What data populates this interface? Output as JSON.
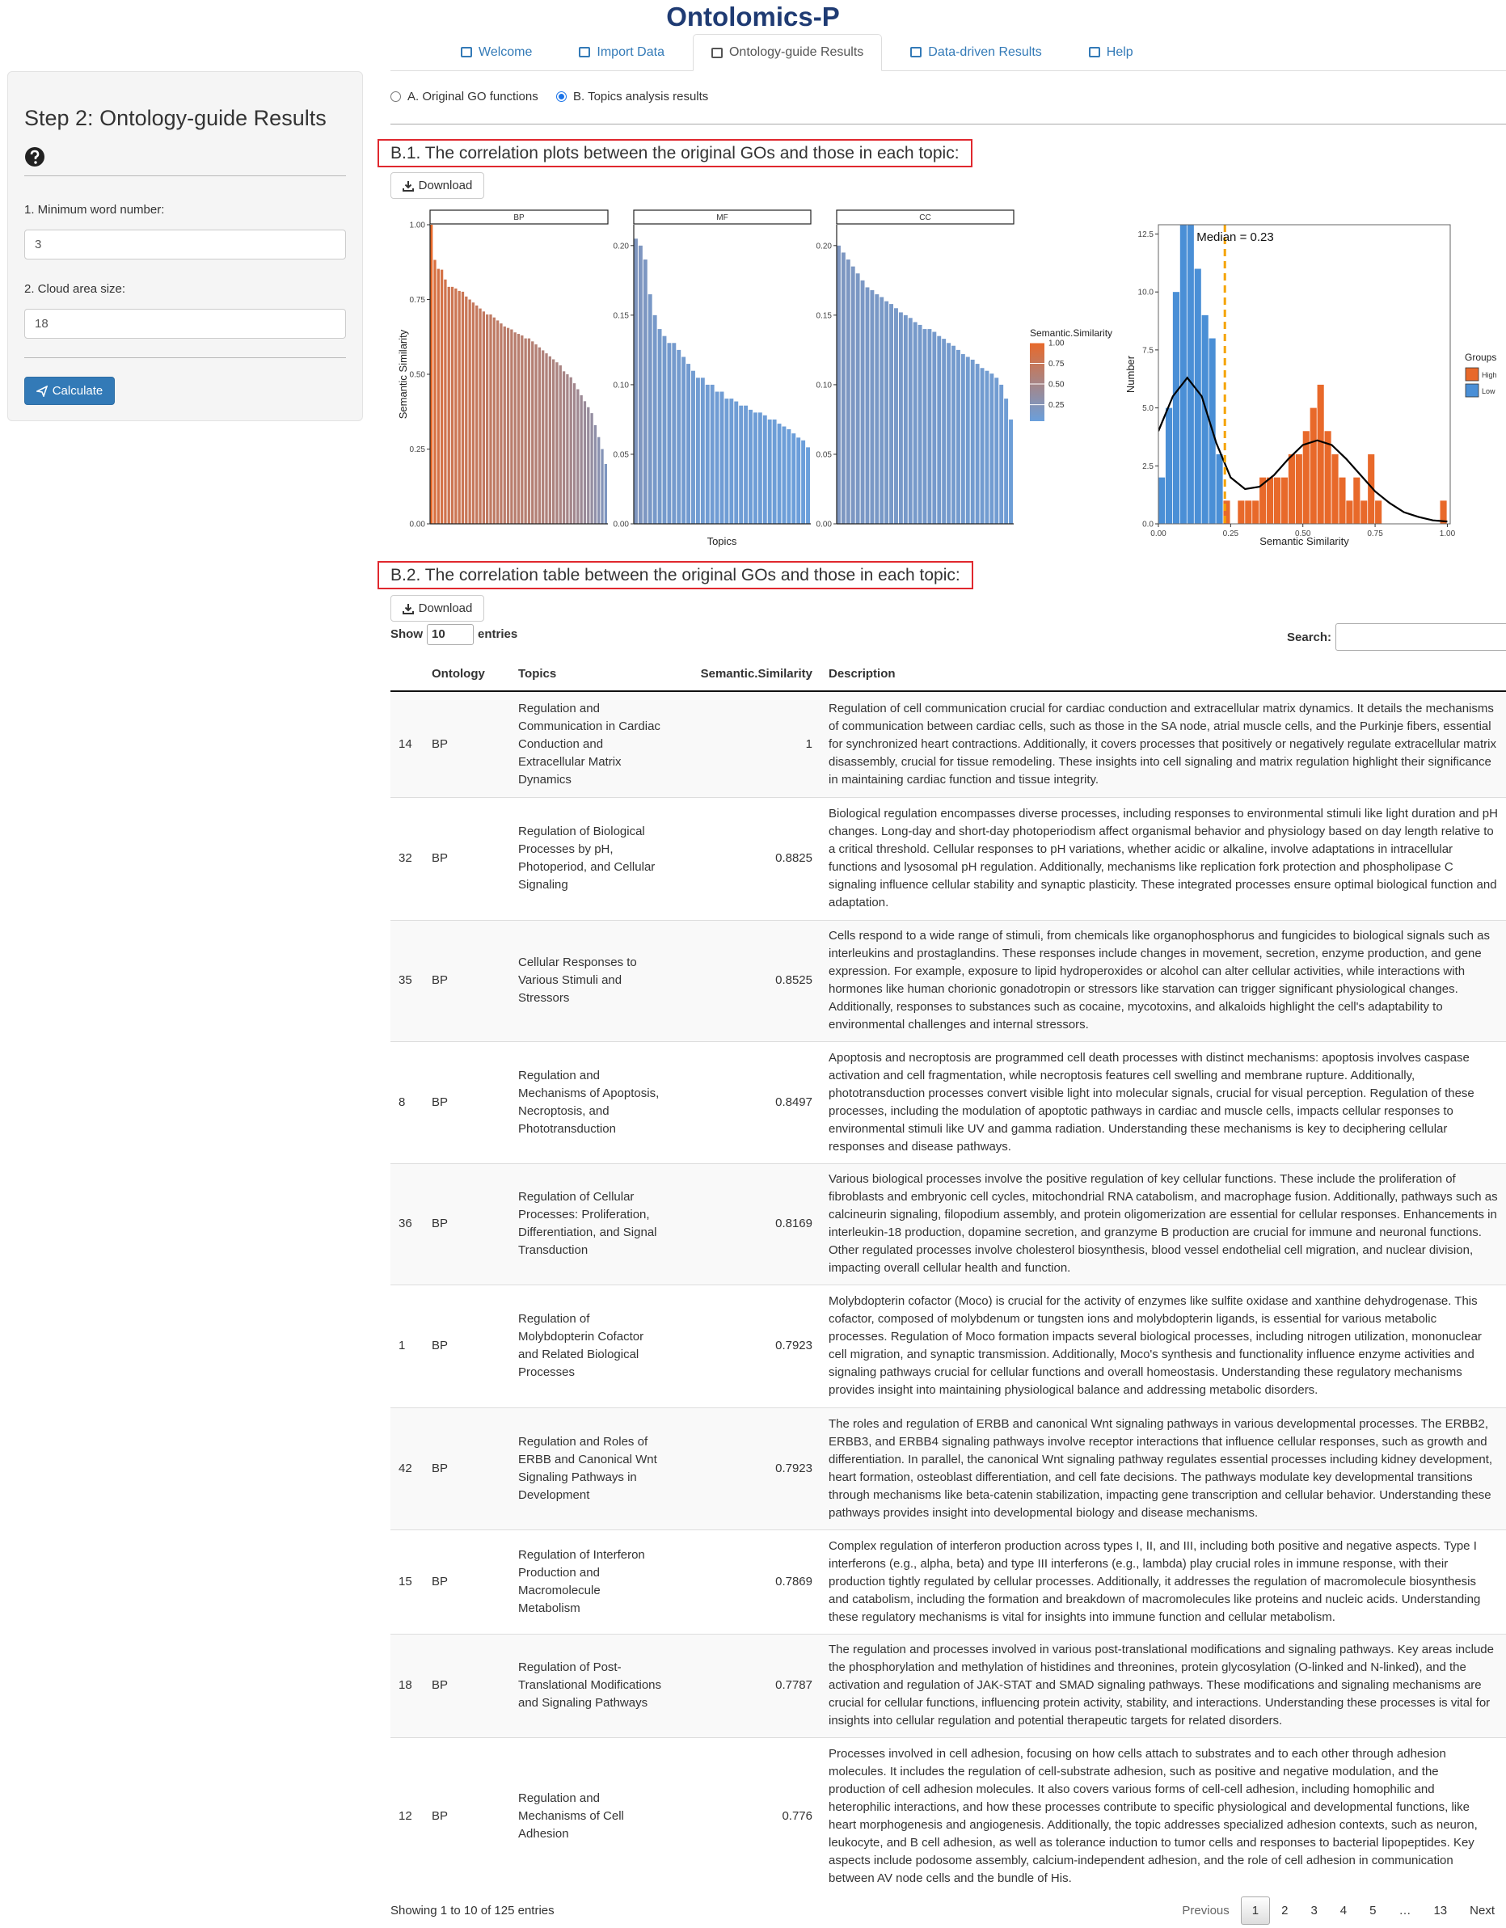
{
  "app": {
    "brand": "Ontolomics-P",
    "tabs": [
      "Welcome",
      "Import Data",
      "Ontology-guide Results",
      "Data-driven Results",
      "Help"
    ],
    "sidebar": {
      "title": "Step 2: Ontology-guide Results",
      "fields": [
        {
          "label": "1. Minimum word number:",
          "value": "3"
        },
        {
          "label": "2. Cloud area size:",
          "value": "18"
        }
      ],
      "button": "Calculate"
    },
    "radios": [
      "A. Original GO functions",
      "B. Topics analysis results"
    ],
    "sections": [
      {
        "title": "B.1. The correlation plots between the original GOs and those in each topic:",
        "button": "Download"
      },
      {
        "title": "B.2. The correlation table between the original GOs and those in each topic:",
        "button": "Download"
      }
    ],
    "table": {
      "show": "Show",
      "length": "10",
      "entries": "entries",
      "search": "Search:",
      "columns": [
        "Ontology",
        "Topics",
        "Semantic.Similarity",
        "Description"
      ],
      "rows": [
        [
          14,
          "BP",
          "Regulation and Communication in Cardiac Conduction and Extracellular Matrix Dynamics",
          1,
          "Regulation of cell communication crucial for cardiac conduction and extracellular matrix dynamics. It details the mechanisms of communication between cardiac cells, such as those in the SA node, atrial muscle cells, and the Purkinje fibers, essential for synchronized heart contractions. Additionally, it covers processes that positively or negatively regulate extracellular matrix disassembly, crucial for tissue remodeling. These insights into cell signaling and matrix regulation highlight their significance in maintaining cardiac function and tissue integrity."
        ],
        [
          32,
          "BP",
          "Regulation of Biological Processes by pH, Photoperiod, and Cellular Signaling",
          0.8825,
          "Biological regulation encompasses diverse processes, including responses to environmental stimuli like light duration and pH changes. Long-day and short-day photoperiodism affect organismal behavior and physiology based on day length relative to a critical threshold. Cellular responses to pH variations, whether acidic or alkaline, involve adaptations in intracellular functions and lysosomal pH regulation. Additionally, mechanisms like replication fork protection and phospholipase C signaling influence cellular stability and synaptic plasticity. These integrated processes ensure optimal biological function and adaptation."
        ],
        [
          35,
          "BP",
          "Cellular Responses to Various Stimuli and Stressors",
          0.8525,
          "Cells respond to a wide range of stimuli, from chemicals like organophosphorus and fungicides to biological signals such as interleukins and prostaglandins. These responses include changes in movement, secretion, enzyme production, and gene expression. For example, exposure to lipid hydroperoxides or alcohol can alter cellular activities, while interactions with hormones like human chorionic gonadotropin or stressors like starvation can trigger significant physiological changes. Additionally, responses to substances such as cocaine, mycotoxins, and alkaloids highlight the cell's adaptability to environmental challenges and internal stressors."
        ],
        [
          8,
          "BP",
          "Regulation and Mechanisms of Apoptosis, Necroptosis, and Phototransduction",
          0.8497,
          "Apoptosis and necroptosis are programmed cell death processes with distinct mechanisms: apoptosis involves caspase activation and cell fragmentation, while necroptosis features cell swelling and membrane rupture. Additionally, phototransduction processes convert visible light into molecular signals, crucial for visual perception. Regulation of these processes, including the modulation of apoptotic pathways in cardiac and muscle cells, impacts cellular responses to environmental stimuli like UV and gamma radiation. Understanding these mechanisms is key to deciphering cellular responses and disease pathways."
        ],
        [
          36,
          "BP",
          "Regulation of Cellular Processes: Proliferation, Differentiation, and Signal Transduction",
          0.8169,
          "Various biological processes involve the positive regulation of key cellular functions. These include the proliferation of fibroblasts and embryonic cell cycles, mitochondrial RNA catabolism, and macrophage fusion. Additionally, pathways such as calcineurin signaling, filopodium assembly, and protein oligomerization are essential for cellular responses. Enhancements in interleukin-18 production, dopamine secretion, and granzyme B production are crucial for immune and neuronal functions. Other regulated processes involve cholesterol biosynthesis, blood vessel endothelial cell migration, and nuclear division, impacting overall cellular health and function."
        ],
        [
          1,
          "BP",
          "Regulation of Molybdopterin Cofactor and Related Biological Processes",
          0.7923,
          "Molybdopterin cofactor (Moco) is crucial for the activity of enzymes like sulfite oxidase and xanthine dehydrogenase. This cofactor, composed of molybdenum or tungsten ions and molybdopterin ligands, is essential for various metabolic processes. Regulation of Moco formation impacts several biological processes, including nitrogen utilization, mononuclear cell migration, and synaptic transmission. Additionally, Moco's synthesis and functionality influence enzyme activities and signaling pathways crucial for cellular functions and overall homeostasis. Understanding these regulatory mechanisms provides insight into maintaining physiological balance and addressing metabolic disorders."
        ],
        [
          42,
          "BP",
          "Regulation and Roles of ERBB and Canonical Wnt Signaling Pathways in Development",
          0.7923,
          "The roles and regulation of ERBB and canonical Wnt signaling pathways in various developmental processes. The ERBB2, ERBB3, and ERBB4 signaling pathways involve receptor interactions that influence cellular responses, such as growth and differentiation. In parallel, the canonical Wnt signaling pathway regulates essential processes including kidney development, heart formation, osteoblast differentiation, and cell fate decisions. The pathways modulate key developmental transitions through mechanisms like beta-catenin stabilization, impacting gene transcription and cellular behavior. Understanding these pathways provides insight into developmental biology and disease mechanisms."
        ],
        [
          15,
          "BP",
          "Regulation of Interferon Production and Macromolecule Metabolism",
          0.7869,
          "Complex regulation of interferon production across types I, II, and III, including both positive and negative aspects. Type I interferons (e.g., alpha, beta) and type III interferons (e.g., lambda) play crucial roles in immune response, with their production tightly regulated by cellular processes. Additionally, it addresses the regulation of macromolecule biosynthesis and catabolism, including the formation and breakdown of macromolecules like proteins and nucleic acids. Understanding these regulatory mechanisms is vital for insights into immune function and cellular metabolism."
        ],
        [
          18,
          "BP",
          "Regulation of Post-Translational Modifications and Signaling Pathways",
          0.7787,
          "The regulation and processes involved in various post-translational modifications and signaling pathways. Key areas include the phosphorylation and methylation of histidines and threonines, protein glycosylation (O-linked and N-linked), and the activation and regulation of JAK-STAT and SMAD signaling pathways. These modifications and signaling mechanisms are crucial for cellular functions, influencing protein activity, stability, and interactions. Understanding these processes is vital for insights into cellular regulation and potential therapeutic targets for related disorders."
        ],
        [
          12,
          "BP",
          "Regulation and Mechanisms of Cell Adhesion",
          0.776,
          "Processes involved in cell adhesion, focusing on how cells attach to substrates and to each other through adhesion molecules. It includes the regulation of cell-substrate adhesion, such as positive and negative modulation, and the production of cell adhesion molecules. It also covers various forms of cell-cell adhesion, including homophilic and heterophilic interactions, and how these processes contribute to specific physiological and developmental functions, like heart morphogenesis and angiogenesis. Additionally, the topic addresses specialized adhesion contexts, such as neuron, leukocyte, and B cell adhesion, as well as tolerance induction to tumor cells and responses to bacterial lipopeptides. Key aspects include podosome assembly, calcium-independent adhesion, and the role of cell adhesion in communication between AV node cells and the bundle of His."
        ]
      ],
      "info": "Showing 1 to 10 of 125 entries",
      "pages": [
        "Previous",
        "1",
        "2",
        "3",
        "4",
        "5",
        "…",
        "13",
        "Next"
      ]
    }
  },
  "chart_data": [
    {
      "type": "bar",
      "title": "BP",
      "ylabel": "Semantic Similarity",
      "ylim": [
        0,
        1
      ],
      "yticks": [
        {
          "value": 0,
          "label": "0.00"
        },
        {
          "value": 0.25,
          "label": "0.25"
        },
        {
          "value": 0.5,
          "label": "0.50"
        },
        {
          "value": 0.75,
          "label": "0.75"
        },
        {
          "value": 1,
          "label": "1.00"
        }
      ],
      "values": [
        1,
        0.8825,
        0.8525,
        0.8497,
        0.8169,
        0.7923,
        0.7923,
        0.7869,
        0.7787,
        0.776,
        0.76,
        0.75,
        0.74,
        0.73,
        0.72,
        0.71,
        0.7,
        0.7,
        0.69,
        0.68,
        0.67,
        0.66,
        0.655,
        0.65,
        0.64,
        0.635,
        0.63,
        0.62,
        0.62,
        0.61,
        0.6,
        0.59,
        0.58,
        0.57,
        0.56,
        0.55,
        0.54,
        0.53,
        0.51,
        0.5,
        0.49,
        0.47,
        0.45,
        0.43,
        0.41,
        0.39,
        0.37,
        0.33,
        0.29,
        0.25,
        0.2
      ]
    },
    {
      "type": "bar",
      "title": "MF",
      "xlabel": "Topics",
      "ylim": [
        0,
        0.215
      ],
      "yticks": [
        {
          "value": 0,
          "label": "0.00"
        },
        {
          "value": 0.05,
          "label": "0.05"
        },
        {
          "value": 0.1,
          "label": "0.10"
        },
        {
          "value": 0.15,
          "label": "0.15"
        },
        {
          "value": 0.2,
          "label": "0.20"
        }
      ],
      "values": [
        0.205,
        0.2,
        0.19,
        0.165,
        0.15,
        0.14,
        0.135,
        0.13,
        0.13,
        0.125,
        0.12,
        0.115,
        0.11,
        0.105,
        0.105,
        0.1,
        0.1,
        0.095,
        0.095,
        0.09,
        0.09,
        0.088,
        0.085,
        0.085,
        0.082,
        0.08,
        0.08,
        0.078,
        0.075,
        0.075,
        0.072,
        0.07,
        0.068,
        0.065,
        0.062,
        0.06,
        0.055
      ]
    },
    {
      "type": "bar",
      "title": "CC",
      "ylim": [
        0,
        0.215
      ],
      "yticks": [
        {
          "value": 0,
          "label": "0.00"
        },
        {
          "value": 0.05,
          "label": "0.05"
        },
        {
          "value": 0.1,
          "label": "0.10"
        },
        {
          "value": 0.15,
          "label": "0.15"
        },
        {
          "value": 0.2,
          "label": "0.20"
        }
      ],
      "values": [
        0.2,
        0.195,
        0.19,
        0.185,
        0.18,
        0.175,
        0.17,
        0.168,
        0.165,
        0.163,
        0.16,
        0.158,
        0.155,
        0.152,
        0.15,
        0.148,
        0.145,
        0.143,
        0.14,
        0.14,
        0.138,
        0.135,
        0.133,
        0.13,
        0.128,
        0.125,
        0.122,
        0.12,
        0.118,
        0.115,
        0.112,
        0.11,
        0.108,
        0.105,
        0.1,
        0.09,
        0.075
      ],
      "colorbar": {
        "title": "Semantic.Similarity",
        "limits": [
          0.05,
          1
        ],
        "low_color": "#6a9fdc",
        "high_color": "#e8692a",
        "ticks": [
          {
            "value": 0.25,
            "label": "0.25"
          },
          {
            "value": 0.5,
            "label": "0.50"
          },
          {
            "value": 0.75,
            "label": "0.75"
          },
          {
            "value": 1,
            "label": "1.00"
          }
        ]
      }
    },
    {
      "type": "histogram",
      "xlabel": "Semantic Similarity",
      "ylabel": "Number",
      "xlim": [
        0,
        1.01
      ],
      "ylim": [
        0,
        12.9
      ],
      "xticks": [
        {
          "value": 0,
          "label": "0.00"
        },
        {
          "value": 0.25,
          "label": "0.25"
        },
        {
          "value": 0.5,
          "label": "0.50"
        },
        {
          "value": 0.75,
          "label": "0.75"
        },
        {
          "value": 1,
          "label": "1.00"
        }
      ],
      "yticks": [
        {
          "value": 0,
          "label": "0.0"
        },
        {
          "value": 2.5,
          "label": "2.5"
        },
        {
          "value": 5,
          "label": "5.0"
        },
        {
          "value": 7.5,
          "label": "7.5"
        },
        {
          "value": 10,
          "label": "10.0"
        },
        {
          "value": 12.5,
          "label": "12.5"
        }
      ],
      "bins": [
        0,
        0.025,
        0.05,
        0.075,
        0.1,
        0.125,
        0.15,
        0.175,
        0.2,
        0.225,
        0.25,
        0.275,
        0.3,
        0.325,
        0.35,
        0.375,
        0.4,
        0.425,
        0.45,
        0.475,
        0.5,
        0.525,
        0.55,
        0.575,
        0.6,
        0.625,
        0.65,
        0.675,
        0.7,
        0.725,
        0.75,
        0.775,
        0.8,
        0.825,
        0.85,
        0.875,
        0.9,
        0.925,
        0.95,
        0.975,
        1
      ],
      "legend_title": "Groups",
      "series": [
        {
          "name": "High",
          "color": "#e8692a",
          "values": [
            0,
            0,
            0,
            0,
            0,
            0,
            0,
            0,
            0,
            1,
            0,
            1,
            1,
            1,
            2,
            2,
            2,
            2,
            3,
            3,
            4,
            5,
            6,
            4,
            3,
            2,
            1,
            2,
            1,
            3,
            1,
            0,
            0,
            0,
            0,
            0,
            0,
            0,
            0,
            1
          ]
        },
        {
          "name": "Low",
          "color": "#4a8fd6",
          "values": [
            2,
            5,
            10,
            13,
            13,
            11,
            9,
            8,
            3,
            0,
            0,
            0,
            0,
            0,
            0,
            0,
            0,
            0,
            0,
            0,
            0,
            0,
            0,
            0,
            0,
            0,
            0,
            0,
            0,
            0,
            0,
            0,
            0,
            0,
            0,
            0,
            0,
            0,
            0,
            0
          ]
        }
      ],
      "curve": {
        "color": "#000000",
        "x": [
          0,
          0.05,
          0.1,
          0.15,
          0.2,
          0.25,
          0.3,
          0.35,
          0.4,
          0.45,
          0.5,
          0.55,
          0.6,
          0.65,
          0.7,
          0.75,
          0.8,
          0.85,
          0.9,
          0.95,
          1
        ],
        "y": [
          4,
          5.5,
          6.3,
          5.5,
          3.5,
          2,
          1.5,
          1.6,
          2.1,
          2.8,
          3.4,
          3.6,
          3.4,
          2.8,
          2.1,
          1.4,
          0.9,
          0.5,
          0.3,
          0.15,
          0.1
        ]
      },
      "median": 0.23,
      "median_color": "#f5a300",
      "annotation": "Median = 0.23"
    }
  ]
}
